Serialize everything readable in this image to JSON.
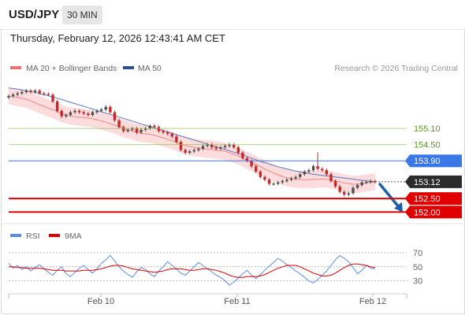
{
  "header": {
    "symbol": "USD/JPY",
    "timeframe": "30 MIN",
    "timestamp": "Thursday, February 12, 2026 12:43:41 AM CET"
  },
  "chart_data": [
    {
      "type": "line",
      "subtype": "candlestick-with-overlays",
      "legend": [
        "MA 20 + Bollinger Bands",
        "MA 50"
      ],
      "legend_placement": "top-left",
      "credit": "Research © 2026 Trading Central",
      "x_tick_labels": [
        "Feb 10",
        "Feb 11",
        "Feb 12"
      ],
      "current_price": 153.12,
      "levels": [
        {
          "value": 155.1,
          "label": "155.10",
          "color": "#8bc34a",
          "kind": "resistance"
        },
        {
          "value": 154.5,
          "label": "154.50",
          "color": "#8bc34a",
          "kind": "resistance"
        },
        {
          "value": 153.9,
          "label": "153.90",
          "color": "#3b78e7",
          "kind": "pivot"
        },
        {
          "value": 152.5,
          "label": "152.50",
          "color": "#e00000",
          "kind": "support"
        },
        {
          "value": 152.0,
          "label": "152.00",
          "color": "#e00000",
          "kind": "support"
        }
      ],
      "current_price_label": "153.12",
      "closes": [
        156.3,
        156.35,
        156.4,
        156.45,
        156.5,
        156.45,
        156.5,
        156.4,
        156.38,
        156.35,
        156.1,
        155.75,
        155.55,
        155.6,
        155.7,
        155.75,
        155.7,
        155.65,
        155.6,
        155.7,
        155.75,
        155.8,
        155.9,
        155.7,
        155.4,
        155.15,
        155.0,
        155.05,
        155.1,
        154.95,
        155.05,
        155.1,
        155.2,
        155.15,
        155.0,
        154.95,
        154.9,
        154.8,
        154.6,
        154.3,
        154.2,
        154.25,
        154.3,
        154.35,
        154.45,
        154.5,
        154.4,
        154.35,
        154.4,
        154.45,
        154.5,
        154.4,
        154.2,
        154.0,
        153.9,
        153.7,
        153.5,
        153.3,
        153.2,
        153.05,
        153.05,
        153.1,
        153.15,
        153.2,
        153.25,
        153.3,
        153.4,
        153.5,
        153.55,
        153.7,
        153.6,
        153.55,
        153.4,
        153.15,
        152.95,
        152.75,
        152.65,
        152.7,
        152.9,
        153.0,
        153.1,
        153.12,
        153.15,
        153.12
      ],
      "ma20": [
        156.3,
        156.28,
        156.25,
        156.22,
        156.18,
        156.12,
        156.05,
        155.98,
        155.92,
        155.85,
        155.8,
        155.72,
        155.65,
        155.6,
        155.56,
        155.54,
        155.52,
        155.5,
        155.48,
        155.46,
        155.42,
        155.38,
        155.33,
        155.28,
        155.22,
        155.16,
        155.1,
        155.05,
        155.0,
        154.95,
        154.92,
        154.9,
        154.88,
        154.85,
        154.8,
        154.75,
        154.7,
        154.64,
        154.58,
        154.52,
        154.47,
        154.43,
        154.4,
        154.37,
        154.35,
        154.33,
        154.32,
        154.3,
        154.28,
        154.25,
        154.2,
        154.14,
        154.08,
        154.0,
        153.92,
        153.84,
        153.76,
        153.68,
        153.6,
        153.52,
        153.45,
        153.38,
        153.32,
        153.27,
        153.24,
        153.22,
        153.21,
        153.2,
        153.2,
        153.21,
        153.22,
        153.23,
        153.22,
        153.2,
        153.16,
        153.12,
        153.08,
        153.05,
        153.03,
        153.03,
        153.05,
        153.08,
        153.1,
        153.12
      ],
      "ma50": [
        156.6,
        156.58,
        156.56,
        156.53,
        156.5,
        156.47,
        156.43,
        156.39,
        156.35,
        156.31,
        156.27,
        156.22,
        156.17,
        156.12,
        156.07,
        156.02,
        155.97,
        155.92,
        155.87,
        155.82,
        155.77,
        155.72,
        155.67,
        155.62,
        155.57,
        155.52,
        155.47,
        155.42,
        155.37,
        155.32,
        155.27,
        155.22,
        155.17,
        155.12,
        155.07,
        155.02,
        154.97,
        154.92,
        154.87,
        154.82,
        154.77,
        154.72,
        154.67,
        154.62,
        154.57,
        154.52,
        154.47,
        154.42,
        154.37,
        154.32,
        154.27,
        154.22,
        154.17,
        154.12,
        154.06,
        154.0,
        153.94,
        153.88,
        153.83,
        153.78,
        153.73,
        153.68,
        153.64,
        153.6,
        153.56,
        153.52,
        153.49,
        153.46,
        153.43,
        153.4,
        153.38,
        153.36,
        153.34,
        153.32,
        153.3,
        153.28,
        153.26,
        153.24,
        153.22,
        153.2,
        153.18,
        153.16,
        153.14,
        153.12
      ],
      "forecast_arrow": {
        "from": 153.12,
        "to": 152.05
      }
    },
    {
      "type": "line",
      "legend": [
        "RSI",
        "9MA"
      ],
      "legend_placement": "top-left",
      "y_tick_labels": [
        "70",
        "50",
        "30"
      ],
      "y_ticks": [
        70,
        50,
        30
      ],
      "rsi": [
        55,
        48,
        52,
        46,
        50,
        44,
        49,
        53,
        47,
        42,
        38,
        45,
        50,
        40,
        36,
        42,
        48,
        52,
        46,
        41,
        47,
        55,
        60,
        66,
        58,
        50,
        44,
        39,
        35,
        43,
        49,
        46,
        40,
        36,
        44,
        50,
        57,
        52,
        47,
        41,
        38,
        44,
        50,
        56,
        52,
        47,
        43,
        38,
        35,
        30,
        24,
        28,
        34,
        40,
        45,
        38,
        33,
        39,
        45,
        51,
        56,
        62,
        58,
        53,
        49,
        44,
        40,
        35,
        30,
        27,
        32,
        38,
        44,
        52,
        60,
        66,
        62,
        57,
        49,
        40,
        45,
        52,
        48,
        47
      ],
      "rsi_ma9": [
        50,
        50,
        49,
        49,
        48,
        48,
        48,
        48,
        47,
        46,
        45,
        45,
        45,
        44,
        44,
        44,
        44,
        45,
        45,
        45,
        46,
        47,
        49,
        51,
        52,
        52,
        51,
        49,
        47,
        46,
        45,
        44,
        43,
        42,
        43,
        44,
        46,
        47,
        47,
        47,
        46,
        45,
        45,
        46,
        47,
        47,
        46,
        45,
        43,
        41,
        38,
        36,
        35,
        35,
        36,
        36,
        36,
        37,
        39,
        42,
        45,
        48,
        50,
        52,
        52,
        52,
        50,
        47,
        44,
        41,
        39,
        37,
        37,
        38,
        41,
        45,
        49,
        52,
        54,
        54,
        53,
        52,
        50,
        49
      ]
    }
  ],
  "colors": {
    "candle_up": "#4f4f4f",
    "candle_down": "#c62828",
    "ma20": "#f07070",
    "bollinger_fill": "#fcd6d6",
    "ma50": "#4a6fbf",
    "rsi": "#5b8de6",
    "rsi_ma9": "#e00000",
    "arrow": "#1f5fa8"
  }
}
